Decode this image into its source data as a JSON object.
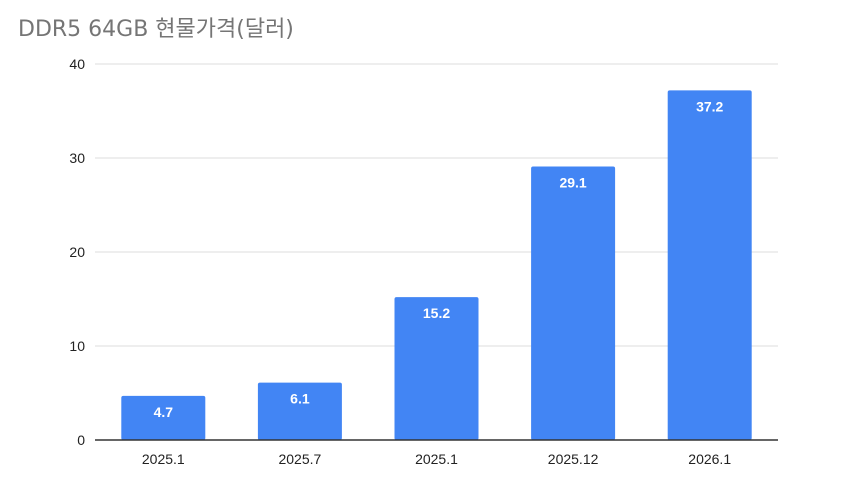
{
  "chart_data": {
    "type": "bar",
    "title": "DDR5 64GB 현물가격(달러)",
    "xlabel": "",
    "ylabel": "",
    "categories": [
      "2025.1",
      "2025.7",
      "2025.1",
      "2025.12",
      "2026.1"
    ],
    "values": [
      4.7,
      6.1,
      15.2,
      29.1,
      37.2
    ],
    "data_labels": [
      "4.7",
      "6.1",
      "15.2",
      "29.1",
      "37.2"
    ],
    "ylim": [
      0,
      40
    ],
    "yticks": [
      0,
      10,
      20,
      30,
      40
    ],
    "grid": true,
    "legend": "none",
    "bar_color": "#4285F4"
  }
}
